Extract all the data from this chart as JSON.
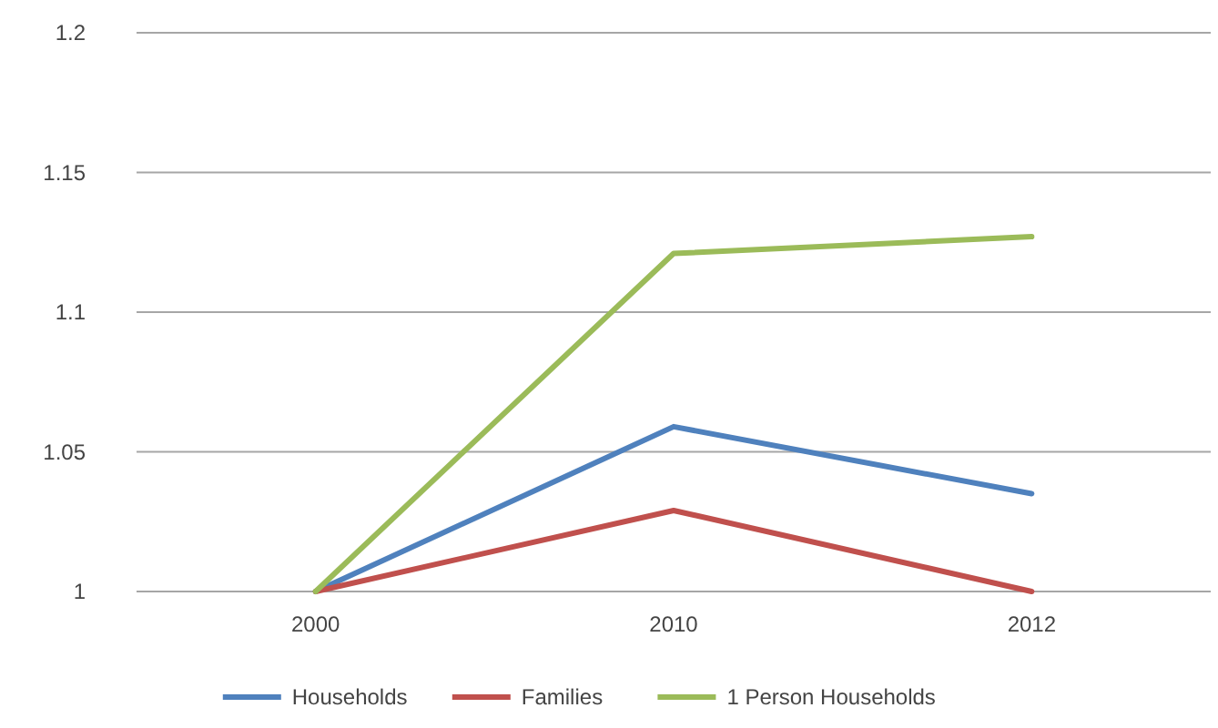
{
  "chart_data": {
    "type": "line",
    "categories": [
      "2000",
      "2010",
      "2012"
    ],
    "series": [
      {
        "name": "Households",
        "color": "#4f81bd",
        "values": [
          1,
          1.059,
          1.035
        ]
      },
      {
        "name": "Families",
        "color": "#c0504d",
        "values": [
          1,
          1.029,
          1.0
        ]
      },
      {
        "name": "1 Person Households",
        "color": "#9bbb59",
        "values": [
          1,
          1.121,
          1.127
        ]
      }
    ],
    "ylim": [
      1,
      1.2
    ],
    "yticks": [
      1,
      1.05,
      1.1,
      1.15,
      1.2
    ],
    "grid": "y",
    "legend": "bottom",
    "marker": "none",
    "line_style": "solid"
  }
}
